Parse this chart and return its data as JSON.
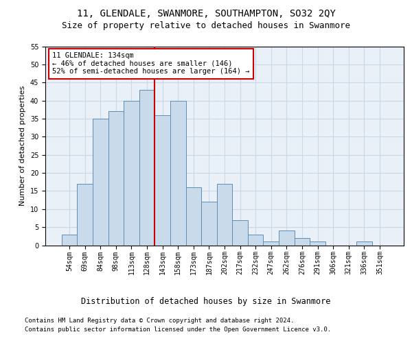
{
  "title": "11, GLENDALE, SWANMORE, SOUTHAMPTON, SO32 2QY",
  "subtitle": "Size of property relative to detached houses in Swanmore",
  "xlabel": "Distribution of detached houses by size in Swanmore",
  "ylabel": "Number of detached properties",
  "bar_labels": [
    "54sqm",
    "69sqm",
    "84sqm",
    "98sqm",
    "113sqm",
    "128sqm",
    "143sqm",
    "158sqm",
    "173sqm",
    "187sqm",
    "202sqm",
    "217sqm",
    "232sqm",
    "247sqm",
    "262sqm",
    "276sqm",
    "291sqm",
    "306sqm",
    "321sqm",
    "336sqm",
    "351sqm"
  ],
  "bar_values": [
    3,
    17,
    35,
    37,
    40,
    43,
    36,
    40,
    16,
    12,
    17,
    7,
    3,
    1,
    4,
    2,
    1,
    0,
    0,
    1,
    0
  ],
  "bar_color": "#c9daea",
  "bar_edgecolor": "#5b8db8",
  "vline_x": 5.5,
  "vline_color": "#cc0000",
  "annotation_text": "11 GLENDALE: 134sqm\n← 46% of detached houses are smaller (146)\n52% of semi-detached houses are larger (164) →",
  "annotation_box_color": "#ffffff",
  "annotation_box_edgecolor": "#cc0000",
  "ylim": [
    0,
    55
  ],
  "yticks": [
    0,
    5,
    10,
    15,
    20,
    25,
    30,
    35,
    40,
    45,
    50,
    55
  ],
  "grid_color": "#c8d8e8",
  "background_color": "#eaf0f7",
  "footer_line1": "Contains HM Land Registry data © Crown copyright and database right 2024.",
  "footer_line2": "Contains public sector information licensed under the Open Government Licence v3.0.",
  "title_fontsize": 10,
  "subtitle_fontsize": 9,
  "xlabel_fontsize": 8.5,
  "ylabel_fontsize": 8,
  "tick_fontsize": 7,
  "annotation_fontsize": 7.5,
  "footer_fontsize": 6.5
}
